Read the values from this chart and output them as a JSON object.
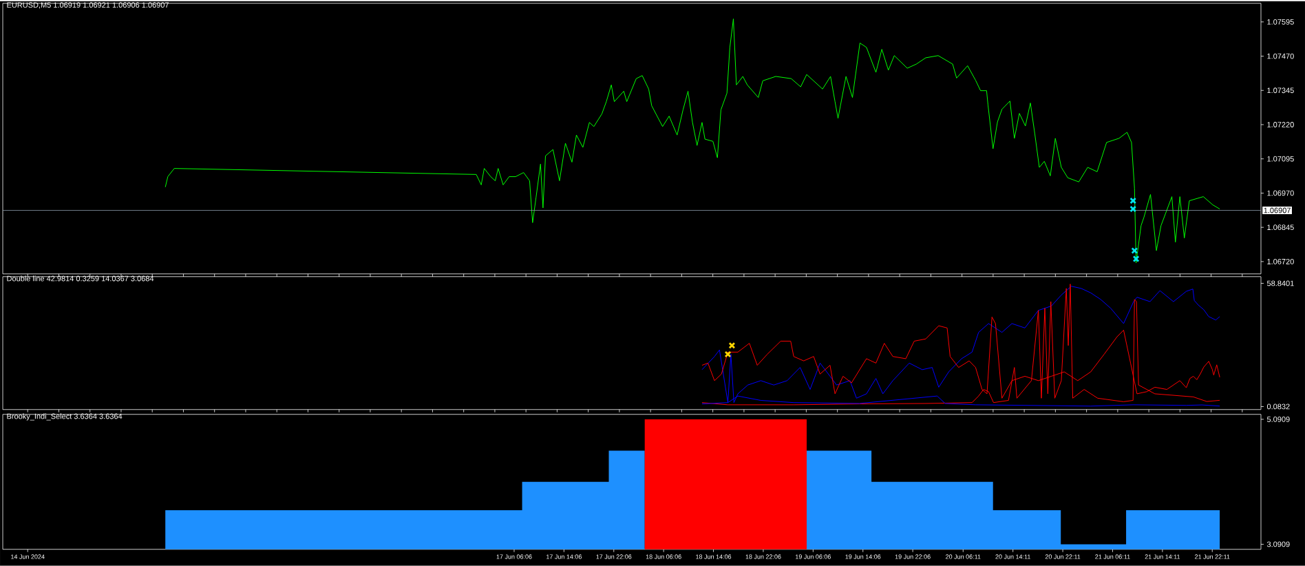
{
  "chart_data": [
    {
      "type": "line",
      "title": "EURUSD,M5 1.06919 1.06921 1.06906 1.06907",
      "xlim": [
        "2024-06-13T20:00",
        "2024-06-22T06:00"
      ],
      "ylim": [
        1.06675,
        1.07663
      ],
      "tick_labels": "y",
      "yticks": [
        1.07595,
        {
          "value": 1.0747,
          "label": "1.07470"
        },
        1.07345,
        {
          "value": 1.0722,
          "label": "1.07220"
        },
        1.07095,
        {
          "value": 1.0697,
          "label": "1.06970"
        },
        1.06845,
        {
          "value": 1.0672,
          "label": "1.06720"
        }
      ],
      "ref_lines": [
        {
          "axis": "y",
          "value": 1.06907,
          "label": "1.06907",
          "color": "#8c9aa8"
        }
      ],
      "series": [
        {
          "color": "#00ff00",
          "x": [
            "2024-06-14T22:06",
            "2024-06-14T22:30",
            "2024-06-14T23:32",
            "2024-06-17T00:01",
            "2024-06-17T00:49",
            "2024-06-17T01:18",
            "2024-06-17T02:20",
            "2024-06-17T03:04",
            "2024-06-17T03:32",
            "2024-06-17T04:20",
            "2024-06-17T05:18",
            "2024-06-17T06:20",
            "2024-06-17T07:37",
            "2024-06-17T08:35",
            "2024-06-17T09:04",
            "2024-06-17T09:37",
            "2024-06-17T10:20",
            "2024-06-17T10:44",
            "2024-06-17T11:08",
            "2024-06-17T12:20",
            "2024-06-17T13:23",
            "2024-06-17T14:20",
            "2024-06-17T15:23",
            "2024-06-17T16:06",
            "2024-06-17T17:08",
            "2024-06-17T18:11",
            "2024-06-17T18:54",
            "2024-06-17T20:11",
            "2024-06-17T20:54",
            "2024-06-17T21:42",
            "2024-06-17T22:11",
            "2024-06-17T23:42",
            "2024-06-18T00:11",
            "2024-06-18T01:42",
            "2024-06-18T02:40",
            "2024-06-18T03:42",
            "2024-06-18T04:11",
            "2024-06-18T05:56",
            "2024-06-18T06:59",
            "2024-06-18T08:16",
            "2024-06-18T09:13",
            "2024-06-18T10:01",
            "2024-06-18T10:44",
            "2024-06-18T11:28",
            "2024-06-18T12:16",
            "2024-06-18T12:44",
            "2024-06-18T14:01",
            "2024-06-18T14:44",
            "2024-06-18T15:18",
            "2024-06-18T16:16",
            "2024-06-18T16:44",
            "2024-06-18T17:18",
            "2024-06-18T17:47",
            "2024-06-18T18:49",
            "2024-06-18T19:32",
            "2024-06-18T21:18",
            "2024-06-18T22:01",
            "2024-06-19T00:06",
            "2024-06-19T02:35",
            "2024-06-19T04:06",
            "2024-06-19T05:04",
            "2024-06-19T07:37",
            "2024-06-19T08:54",
            "2024-06-19T09:37",
            "2024-06-19T10:06",
            "2024-06-19T11:23",
            "2024-06-19T12:25",
            "2024-06-19T13:37",
            "2024-06-19T14:40",
            "2024-06-19T16:11",
            "2024-06-19T17:08",
            "2024-06-19T18:11",
            "2024-06-19T19:08",
            "2024-06-19T21:13",
            "2024-06-19T22:40",
            "2024-06-20T00:11",
            "2024-06-20T02:11",
            "2024-06-20T04:30",
            "2024-06-20T05:08",
            "2024-06-20T06:54",
            "2024-06-20T08:11",
            "2024-06-20T08:59",
            "2024-06-20T09:57",
            "2024-06-20T10:11",
            "2024-06-20T10:59",
            "2024-06-20T11:42",
            "2024-06-20T12:25",
            "2024-06-20T13:42",
            "2024-06-20T14:25",
            "2024-06-20T15:13",
            "2024-06-20T16:11",
            "2024-06-20T16:59",
            "2024-06-20T17:42",
            "2024-06-20T18:25",
            "2024-06-20T19:13",
            "2024-06-20T20:11",
            "2024-06-20T20:59",
            "2024-06-20T21:57",
            "2024-06-20T22:59",
            "2024-06-21T00:45",
            "2024-06-21T02:11",
            "2024-06-21T03:42",
            "2024-06-21T05:13",
            "2024-06-21T07:13",
            "2024-06-21T08:30",
            "2024-06-21T09:13",
            "2024-06-21T09:42",
            "2024-06-21T09:57",
            "2024-06-21T10:45",
            "2024-06-21T11:13",
            "2024-06-21T12:16",
            "2024-06-21T13:13",
            "2024-06-21T13:57",
            "2024-06-21T15:42",
            "2024-06-21T16:16",
            "2024-06-21T16:59",
            "2024-06-21T17:42",
            "2024-06-21T18:30",
            "2024-06-21T20:45",
            "2024-06-21T22:16",
            "2024-06-21T23:23"
          ],
          "values": [
            1.06992,
            1.0703,
            1.0706,
            1.07038,
            1.07,
            1.0706,
            1.0703,
            1.07015,
            1.0706,
            1.07,
            1.0703,
            1.0703,
            1.07045,
            1.07015,
            1.06862,
            1.06954,
            1.07076,
            1.06916,
            1.07106,
            1.07129,
            1.07015,
            1.07152,
            1.07083,
            1.07182,
            1.07137,
            1.07228,
            1.07213,
            1.07259,
            1.07304,
            1.07365,
            1.07304,
            1.07342,
            1.07304,
            1.07388,
            1.07399,
            1.0735,
            1.07289,
            1.07213,
            1.07251,
            1.07182,
            1.07274,
            1.07342,
            1.07228,
            1.07144,
            1.07228,
            1.07167,
            1.07159,
            1.07099,
            1.07274,
            1.07335,
            1.07502,
            1.07606,
            1.07365,
            1.07396,
            1.07365,
            1.07319,
            1.0738,
            1.07396,
            1.07388,
            1.07358,
            1.07403,
            1.0735,
            1.07396,
            1.07304,
            1.07243,
            1.07396,
            1.07319,
            1.07518,
            1.07502,
            1.07411,
            1.07495,
            1.07419,
            1.07472,
            1.07426,
            1.07441,
            1.07464,
            1.07472,
            1.07441,
            1.0739,
            1.07435,
            1.07382,
            1.07344,
            1.07344,
            1.07291,
            1.07132,
            1.0723,
            1.07276,
            1.07306,
            1.0717,
            1.07261,
            1.07215,
            1.07299,
            1.07185,
            1.07064,
            1.07086,
            1.07033,
            1.0717,
            1.07064,
            1.07026,
            1.07011,
            1.07064,
            1.07048,
            1.07155,
            1.0717,
            1.07192,
            1.07155,
            1.06988,
            1.06715,
            1.06851,
            1.06882,
            1.06965,
            1.0676,
            1.06851,
            1.06957,
            1.06791,
            1.06957,
            1.06806,
            1.06942,
            1.06957,
            1.06927,
            1.06912
          ]
        },
        {
          "type": "scatter",
          "color": "#00e5ee",
          "marker": "cross",
          "x": [
            "2024-06-21T09:28",
            "2024-06-21T09:28",
            "2024-06-21T09:42",
            "2024-06-21T09:57"
          ],
          "values": [
            1.06942,
            1.06912,
            1.0676,
            1.0673
          ]
        }
      ]
    },
    {
      "type": "line",
      "title": "Double line 42.9814 0.3259 14.0367 3.0684",
      "xlim": [
        "2024-06-13T20:00",
        "2024-06-22T06:00"
      ],
      "ylim": [
        -1.33,
        62.02
      ],
      "tick_labels": "y",
      "yticks": [
        58.8401,
        0.0832
      ],
      "series": [
        {
          "color": "#0000ff",
          "x": [
            "2024-06-18T12:16",
            "2024-06-18T14:16",
            "2024-06-18T15:04",
            "2024-06-18T16:25",
            "2024-06-18T16:54",
            "2024-06-18T17:23",
            "2024-06-18T18:01",
            "2024-06-18T19:37",
            "2024-06-18T21:42",
            "2024-06-18T23:47",
            "2024-06-19T01:56",
            "2024-06-19T04:01",
            "2024-06-19T05:37",
            "2024-06-19T07:13",
            "2024-06-19T08:49",
            "2024-06-19T09:52",
            "2024-06-19T12:01",
            "2024-06-19T13:04",
            "2024-06-19T14:40",
            "2024-06-19T16:11",
            "2024-06-19T17:18",
            "2024-06-19T18:54",
            "2024-06-19T21:32",
            "2024-06-19T23:37",
            "2024-06-20T01:13",
            "2024-06-20T02:16",
            "2024-06-20T03:52",
            "2024-06-20T05:56",
            "2024-06-20T07:37",
            "2024-06-20T08:40",
            "2024-06-20T10:16",
            "2024-06-20T12:25",
            "2024-06-20T14:01",
            "2024-06-20T16:06",
            "2024-06-20T18:16",
            "2024-06-20T20:21",
            "2024-06-20T21:57",
            "2024-06-20T23:33",
            "2024-06-21T01:09",
            "2024-06-21T02:40",
            "2024-06-21T04:16",
            "2024-06-21T05:52",
            "2024-06-21T07:57",
            "2024-06-21T09:33",
            "2024-06-21T10:06",
            "2024-06-21T12:11",
            "2024-06-21T13:47",
            "2024-06-21T15:57",
            "2024-06-21T18:01",
            "2024-06-21T19:04",
            "2024-06-21T19:18",
            "2024-06-21T19:57",
            "2024-06-21T20:49",
            "2024-06-21T21:37",
            "2024-06-21T22:45",
            "2024-06-21T23:23"
          ],
          "values": [
            17.68,
            23.96,
            27.1,
            1.98,
            25.0,
            1.98,
            6.17,
            10.36,
            12.45,
            10.36,
            12.45,
            18.73,
            8.26,
            20.82,
            14.54,
            10.36,
            12.45,
            4.08,
            6.17,
            13.5,
            6.17,
            12.45,
            20.82,
            17.68,
            18.73,
            9.31,
            16.63,
            22.91,
            26.05,
            35.47,
            39.66,
            35.47,
            39.66,
            37.56,
            45.94,
            48.03,
            53.26,
            57.45,
            56.4,
            54.31,
            51.17,
            46.98,
            39.66,
            50.12,
            52.22,
            50.12,
            55.35,
            50.12,
            55.02,
            56.12,
            50.65,
            48.46,
            46.27,
            42.99,
            41.35,
            42.98
          ]
        },
        {
          "color": "#ff0000",
          "x": [
            "2024-06-18T12:16",
            "2024-06-18T13:13",
            "2024-06-18T14:16",
            "2024-06-18T15:23",
            "2024-06-18T16:25",
            "2024-06-18T18:01",
            "2024-06-18T19:52",
            "2024-06-18T21:08",
            "2024-06-18T22:44",
            "2024-06-19T00:54",
            "2024-06-19T02:30",
            "2024-06-19T02:59",
            "2024-06-19T04:35",
            "2024-06-19T06:11",
            "2024-06-19T07:13",
            "2024-06-19T08:49",
            "2024-06-19T09:37",
            "2024-06-19T10:54",
            "2024-06-19T12:16",
            "2024-06-19T14:40",
            "2024-06-19T16:11",
            "2024-06-19T17:32",
            "2024-06-19T18:54",
            "2024-06-19T20:59",
            "2024-06-19T22:20",
            "2024-06-20T00:11",
            "2024-06-20T02:16",
            "2024-06-20T03:37",
            "2024-06-20T04:06",
            "2024-06-20T05:28",
            "2024-06-20T07:09",
            "2024-06-20T08:11",
            "2024-06-20T09:13",
            "2024-06-20T10:01",
            "2024-06-20T10:49",
            "2024-06-20T11:23",
            "2024-06-20T12:25",
            "2024-06-20T14:01",
            "2024-06-20T16:06",
            "2024-06-20T18:16",
            "2024-06-20T20:21",
            "2024-06-20T22:25",
            "2024-06-21T00:35",
            "2024-06-21T02:40",
            "2024-06-21T04:49",
            "2024-06-21T06:54",
            "2024-06-21T07:57",
            "2024-06-21T09:04",
            "2024-06-21T10:06",
            "2024-06-21T11:42",
            "2024-06-21T12:58",
            "2024-06-21T14:54",
            "2024-06-21T16:59",
            "2024-06-21T18:01",
            "2024-06-21T18:35",
            "2024-06-21T19:09",
            "2024-06-21T19:42",
            "2024-06-21T20:16",
            "2024-06-21T20:49",
            "2024-06-21T21:37",
            "2024-06-21T22:11",
            "2024-06-21T22:25",
            "2024-06-21T22:54",
            "2024-06-21T23:23"
          ],
          "values": [
            19.77,
            20.82,
            12.45,
            15.59,
            26.05,
            26.05,
            30.24,
            19.77,
            25.0,
            31.28,
            31.28,
            23.96,
            21.87,
            23.96,
            15.59,
            19.77,
            6.17,
            14.54,
            11.4,
            22.91,
            20.82,
            30.24,
            23.96,
            22.91,
            31.28,
            32.33,
            38.61,
            37.56,
            23.96,
            18.73,
            21.87,
            18.73,
            8.26,
            6.17,
            42.8,
            39.66,
            4.08,
            12.45,
            14.54,
            12.45,
            14.54,
            16.63,
            12.45,
            16.63,
            25.0,
            33.38,
            36.52,
            20.82,
            6.17,
            7.22,
            9.31,
            8.26,
            12.45,
            9.07,
            13.45,
            14.54,
            12.9,
            15.64,
            18.92,
            21.65,
            17.85,
            15.09,
            19.99,
            14.04
          ]
        },
        {
          "color": "#ff0000",
          "x": [
            "2024-06-18T12:16",
            "2024-06-18T16:25",
            "2024-06-19T02:59",
            "2024-06-19T13:32",
            "2024-06-20T00:11",
            "2024-06-20T07:37",
            "2024-06-20T08:40",
            "2024-06-20T09:28",
            "2024-06-20T10:16",
            "2024-06-20T11:04",
            "2024-06-20T13:28",
            "2024-06-20T14:25",
            "2024-06-20T14:49",
            "2024-06-20T17:09",
            "2024-06-20T18:16",
            "2024-06-20T18:45",
            "2024-06-20T19:18",
            "2024-06-20T19:47",
            "2024-06-20T20:16",
            "2024-06-20T20:54",
            "2024-06-20T21:57",
            "2024-06-20T22:45",
            "2024-06-20T23:04",
            "2024-06-20T23:23",
            "2024-06-20T23:47",
            "2024-06-21T01:37",
            "2024-06-21T03:47",
            "2024-06-21T07:57",
            "2024-06-21T09:28",
            "2024-06-21T09:42",
            "2024-06-21T10:01",
            "2024-06-21T10:21",
            "2024-06-21T12:58",
            "2024-06-21T19:09",
            "2024-06-21T21:18",
            "2024-06-21T23:23"
          ],
          "values": [
            1.98,
            0.94,
            0.94,
            1.36,
            1.57,
            1.98,
            5.12,
            8.26,
            7.22,
            1.98,
            3.03,
            18.73,
            4.08,
            12.45,
            45.94,
            4.08,
            46.98,
            6.17,
            50.12,
            4.08,
            12.45,
            56.4,
            29.19,
            58.49,
            4.08,
            8.26,
            4.08,
            2.4,
            3.03,
            51.17,
            50.12,
            10.36,
            6.17,
            4.7,
            2.51,
            3.07
          ]
        },
        {
          "color": "#0000ff",
          "x": [
            "2024-06-18T12:16",
            "2024-06-18T16:25",
            "2024-06-18T18:01",
            "2024-06-18T21:42",
            "2024-06-19T02:59",
            "2024-06-19T13:32",
            "2024-06-20T02:01",
            "2024-06-20T03:18",
            "2024-06-20T08:11",
            "2024-06-21T02:40",
            "2024-06-21T09:33",
            "2024-06-21T18:01",
            "2024-06-21T20:30",
            "2024-06-21T23:23"
          ],
          "values": [
            1.36,
            1.98,
            5.12,
            3.03,
            1.98,
            1.57,
            5.12,
            1.57,
            0.94,
            0.31,
            0.94,
            0.65,
            0.87,
            0.33
          ]
        },
        {
          "type": "scatter",
          "color": "#ffd700",
          "marker": "cross",
          "x": [
            "2024-06-18T16:25",
            "2024-06-18T17:04"
          ],
          "values": [
            25.0,
            29.19
          ]
        }
      ]
    },
    {
      "type": "area",
      "title": "Brooky_Indi_Select 3.6364 3.6364",
      "xlim": [
        "2024-06-13T20:00",
        "2024-06-22T06:00"
      ],
      "ylim": [
        3.01,
        5.17
      ],
      "yticks": [
        5.0909,
        3.0909
      ],
      "xticks": [
        {
          "value": "2024-06-14",
          "label": "14 Jun 2024"
        },
        {
          "value": "2024-06-17T06:06",
          "label": "17 Jun 06:06"
        },
        {
          "value": "2024-06-17T14:06",
          "label": "17 Jun 14:06"
        },
        {
          "value": "2024-06-17T22:06",
          "label": "17 Jun 22:06"
        },
        {
          "value": "2024-06-18T06:06",
          "label": "18 Jun 06:06"
        },
        {
          "value": "2024-06-18T14:06",
          "label": "18 Jun 14:06"
        },
        {
          "value": "2024-06-18T22:06",
          "label": "18 Jun 22:06"
        },
        {
          "value": "2024-06-19T06:06",
          "label": "19 Jun 06:06"
        },
        {
          "value": "2024-06-19T14:06",
          "label": "19 Jun 14:06"
        },
        {
          "value": "2024-06-19T22:06",
          "label": "19 Jun 22:06"
        },
        {
          "value": "2024-06-20T06:11",
          "label": "20 Jun 06:11"
        },
        {
          "value": "2024-06-20T14:11",
          "label": "20 Jun 14:11"
        },
        {
          "value": "2024-06-20T22:11",
          "label": "20 Jun 22:11"
        },
        {
          "value": "2024-06-21T06:11",
          "label": "21 Jun 06:11"
        },
        {
          "value": "2024-06-21T14:11",
          "label": "21 Jun 14:11"
        },
        {
          "value": "2024-06-21T22:11",
          "label": "21 Jun 22:11"
        }
      ],
      "series": [
        {
          "color": "#1e90ff",
          "x": [
            "2024-06-14T22:06",
            "2024-06-17T07:23",
            "2024-06-17T07:23",
            "2024-06-17T21:18",
            "2024-06-17T21:18",
            "2024-06-18T03:04"
          ],
          "values": [
            3.6364,
            3.6364,
            4.09,
            4.09,
            4.59,
            4.59
          ]
        },
        {
          "color": "#1e90ff",
          "x": [
            "2024-06-19T05:04",
            "2024-06-19T15:28",
            "2024-06-19T15:28",
            "2024-06-20T10:59",
            "2024-06-20T10:59",
            "2024-06-20T21:52",
            "2024-06-20T21:52",
            "2024-06-21T08:21",
            "2024-06-21T08:21",
            "2024-06-21T23:23"
          ],
          "values": [
            4.59,
            4.59,
            4.09,
            4.09,
            3.6364,
            3.6364,
            3.09,
            3.09,
            3.6364,
            3.6364
          ]
        },
        {
          "color": "#ff0000",
          "x": [
            "2024-06-18T03:04",
            "2024-06-19T05:04"
          ],
          "values": [
            5.0909,
            5.0909
          ]
        }
      ]
    }
  ]
}
